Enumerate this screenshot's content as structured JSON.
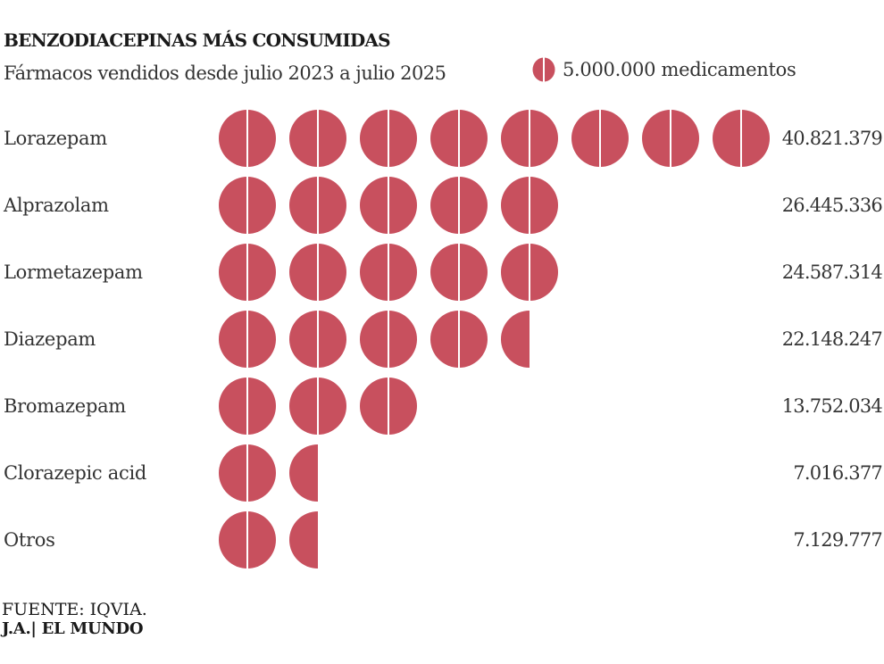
{
  "chart_data": {
    "type": "pictogram",
    "title": "BENZODIACEPINAS MÁS CONSUMIDAS",
    "subtitle": "Fármacos vendidos desde julio 2023 a julio 2025",
    "unit_value": 5000000,
    "legend_label": "5.000.000 medicamentos",
    "color": "#c8505e",
    "categories": [
      "Lorazepam",
      "Alprazolam",
      "Lormetazepam",
      "Diazepam",
      "Bromazepam",
      "Clorazepic acid",
      "Otros"
    ],
    "values": [
      40821379,
      26445336,
      24587314,
      22148247,
      13752034,
      7016377,
      7129777
    ],
    "value_labels": [
      "40.821.379",
      "26.445.336",
      "24.587.314",
      "22.148.247",
      "13.752.034",
      "7.016.377",
      "7.129.777"
    ],
    "icons_shown": [
      8,
      5,
      5,
      4.5,
      3,
      1.5,
      1.5
    ]
  },
  "footer": {
    "source": "FUENTE: IQVIA.",
    "credit": "J.A.| EL MUNDO"
  }
}
